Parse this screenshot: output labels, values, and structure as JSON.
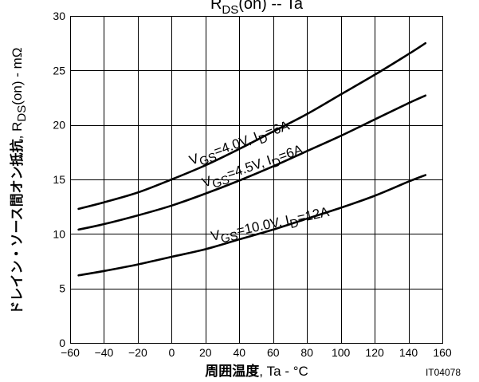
{
  "chart_data": {
    "type": "line",
    "title": {
      "main": "R",
      "sub": "DS",
      "suffix": "(on)  --  Ta"
    },
    "xlabel": {
      "bold": "周囲温度",
      "rest": ", Ta - °C"
    },
    "ylabel": {
      "bold": "ドレイン・ソース間オン抵抗",
      "rest_prefix": ", R",
      "sub": "DS",
      "rest_suffix": "(on) - mΩ"
    },
    "xlim": [
      -60,
      160
    ],
    "ylim": [
      0,
      30
    ],
    "x_ticks": [
      -60,
      -40,
      -20,
      0,
      20,
      40,
      60,
      80,
      100,
      120,
      140,
      160
    ],
    "y_ticks": [
      0,
      5,
      10,
      15,
      20,
      25,
      30
    ],
    "x_tick_labels": [
      "−60",
      "−40",
      "−20",
      "0",
      "20",
      "40",
      "60",
      "80",
      "100",
      "120",
      "140",
      "160"
    ],
    "y_tick_labels": [
      "0",
      "5",
      "10",
      "15",
      "20",
      "25",
      "30"
    ],
    "grid": true,
    "code": "IT04078",
    "series": [
      {
        "label": {
          "v": "V",
          "v_sub": "GS",
          "v_val": "=4.0V, ",
          "i": "I",
          "i_sub": "D",
          "i_val": "=6A"
        },
        "x": [
          -55,
          -40,
          -20,
          0,
          20,
          40,
          60,
          80,
          100,
          120,
          140,
          150
        ],
        "y": [
          12.3,
          12.9,
          13.8,
          15.0,
          16.3,
          17.8,
          19.4,
          21.0,
          22.8,
          24.6,
          26.5,
          27.5
        ]
      },
      {
        "label": {
          "v": "V",
          "v_sub": "GS",
          "v_val": "=4.5V, ",
          "i": "I",
          "i_sub": "D",
          "i_val": "=6A"
        },
        "x": [
          -55,
          -40,
          -20,
          0,
          20,
          40,
          60,
          80,
          100,
          120,
          140,
          150
        ],
        "y": [
          10.4,
          10.9,
          11.7,
          12.6,
          13.7,
          14.9,
          16.2,
          17.6,
          19.0,
          20.5,
          22.0,
          22.7
        ]
      },
      {
        "label": {
          "v": "V",
          "v_sub": "GS",
          "v_val": "=10.0V, ",
          "i": "I",
          "i_sub": "D",
          "i_val": "=12A"
        },
        "x": [
          -55,
          -40,
          -20,
          0,
          20,
          40,
          60,
          80,
          100,
          120,
          140,
          150
        ],
        "y": [
          6.2,
          6.6,
          7.2,
          7.9,
          8.6,
          9.5,
          10.4,
          11.4,
          12.4,
          13.5,
          14.8,
          15.4
        ]
      }
    ]
  }
}
